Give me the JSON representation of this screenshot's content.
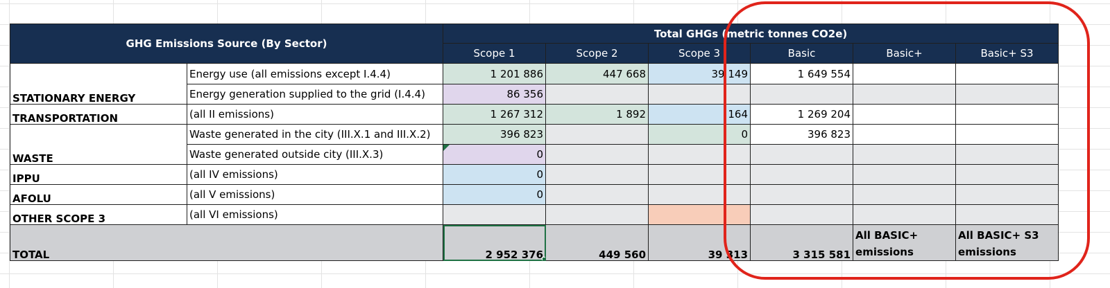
{
  "header": {
    "source_label": "GHG Emissions Source (By Sector)",
    "total_label": "Total GHGs (metric tonnes CO2e)",
    "columns": [
      "Scope 1",
      "Scope 2",
      "Scope 3",
      "Basic",
      "Basic+",
      "Basic+ S3"
    ]
  },
  "rows": {
    "stationary_energy": {
      "sector": "STATIONARY ENERGY",
      "energy_use": {
        "source": "Energy use (all emissions except I.4.4)",
        "scope1": "1 201 886",
        "scope2": "447 668",
        "scope3": "39 149",
        "basic": "1 649 554"
      },
      "energy_generation": {
        "source": "Energy generation supplied to the grid (I.4.4)",
        "scope1": "86 356"
      }
    },
    "transportation": {
      "sector": "TRANSPORTATION",
      "source": "(all II emissions)",
      "scope1": "1 267 312",
      "scope2": "1 892",
      "scope3": "164",
      "basic": "1 269 204"
    },
    "waste": {
      "sector": "WASTE",
      "in_city": {
        "source": "Waste generated in the city (III.X.1 and III.X.2)",
        "scope1": "396 823",
        "scope3": "0",
        "basic": "396 823"
      },
      "outside_city": {
        "source": "Waste generated outside city (III.X.3)",
        "scope1": "0"
      }
    },
    "ippu": {
      "sector": "IPPU",
      "source": "(all IV emissions)",
      "scope1": "0"
    },
    "afolu": {
      "sector": "AFOLU",
      "source": "(all V emissions)",
      "scope1": "0"
    },
    "other_scope3": {
      "sector": "OTHER SCOPE 3",
      "source": "(all VI emissions)"
    },
    "total": {
      "label": "TOTAL",
      "scope1": "2 952 376",
      "scope2": "449 560",
      "scope3": "39 313",
      "basic": "3 315 581",
      "basic_plus": "All BASIC+ emissions",
      "basic_plus_s3": "All BASIC+ S3 emissions"
    }
  },
  "colors": {
    "header_bg": "#172f51",
    "scope1_fill": "#d3e4dc",
    "purple_fill": "#e0d6ec",
    "blue_fill": "#cde3f2",
    "salmon_fill": "#f8cdb9",
    "annotation": "#e0241b"
  }
}
